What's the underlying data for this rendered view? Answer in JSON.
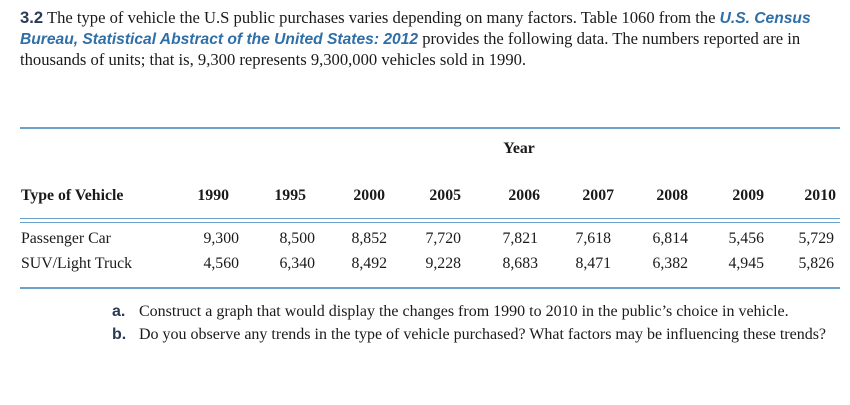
{
  "problem": {
    "number": "3.2",
    "text_before": "The type of vehicle the U.S public purchases varies depending on many factors. Table 1060 from the",
    "source": "U.S. Census Bureau, Statistical Abstract of the United States: 2012",
    "text_after": "provides the following data. The numbers reported are in thousands of units; that is, 9,300 represents 9,300,000 vehicles sold in 1990."
  },
  "table": {
    "group_header": "Year",
    "row_header_label": "Type of Vehicle",
    "years": [
      "1990",
      "1995",
      "2000",
      "2005",
      "2006",
      "2007",
      "2008",
      "2009",
      "2010"
    ],
    "rows": [
      {
        "label": "Passenger Car",
        "values": [
          "9,300",
          "8,500",
          "8,852",
          "7,720",
          "7,821",
          "7,618",
          "6,814",
          "5,456",
          "5,729"
        ]
      },
      {
        "label": "SUV/Light Truck",
        "values": [
          "4,560",
          "6,340",
          "8,492",
          "9,228",
          "8,683",
          "8,471",
          "6,382",
          "4,945",
          "5,826"
        ]
      }
    ]
  },
  "questions": [
    {
      "label": "a.",
      "text": "Construct a graph that would display the changes from 1990 to 2010 in the public’s choice in vehicle."
    },
    {
      "label": "b.",
      "text": "Do you observe any trends in the type of vehicle purchased? What factors may be influencing these trends?"
    }
  ]
}
